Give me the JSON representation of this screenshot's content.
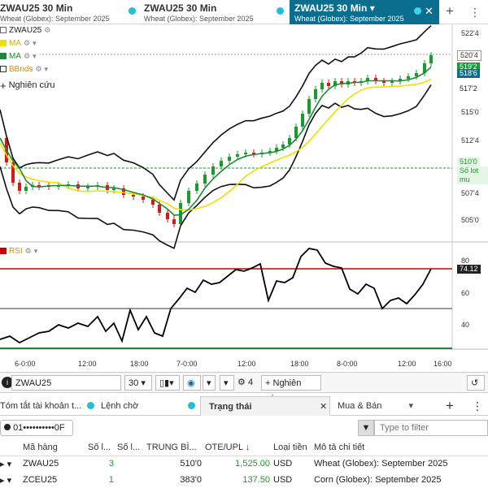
{
  "tabs": [
    {
      "symbol": "ZWAU25 30 Min",
      "subtitle": "Wheat (Globex): September 2025"
    },
    {
      "symbol": "ZWAU25 30 Min",
      "subtitle": "Wheat (Globex): September 2025"
    },
    {
      "symbol": "ZWAU25 30 Min",
      "subtitle": "Wheat (Globex): September 2025",
      "active": true
    }
  ],
  "legend": {
    "symbol": "ZWAU25",
    "ma1": "MA",
    "ma2": "MA",
    "bbands": "BBnds",
    "study": "Nghiên cứu",
    "rsi": "RSI"
  },
  "colors": {
    "accent": "#0b6e8f",
    "up": "#1a9a2a",
    "down": "#d11a1a",
    "ma_fast": "#1a8a3a",
    "ma_slow": "#f0e000",
    "rsi_line": "#000000",
    "rsi_ob": "#cc0000",
    "rsi_os": "#1a8a3a"
  },
  "chart_data": {
    "type": "candlestick",
    "y_ticks": [
      "522'4",
      "520'4",
      "517'2",
      "515'0",
      "512'4",
      "510'0",
      "507'4",
      "505'0"
    ],
    "x_ticks": [
      "6-0:00",
      "12:00",
      "18:00",
      "7-0:00",
      "12:00",
      "18:00",
      "8-0:00",
      "12:00",
      "16:00"
    ],
    "price_labels": [
      {
        "text": "519'2",
        "color": "#1a9a2a"
      },
      {
        "text": "518'6",
        "color": "#0b6e8f"
      },
      {
        "text": "517'2",
        "color": "#222"
      },
      {
        "text": "510'0",
        "color": "#1a9a2a"
      },
      {
        "text": "Số lot mu",
        "color": "#1a9a2a"
      }
    ],
    "last_price": "520'4",
    "rsi": {
      "ticks": [
        "80",
        "60",
        "40"
      ],
      "value": "74.12",
      "overbought": 70,
      "oversold": 30,
      "midline": 50
    }
  },
  "chart_toolbar": {
    "symbol": "ZWAU25",
    "interval": "30",
    "studies_count": "4",
    "studies_label": "Nghiên cứu"
  },
  "bottom_tabs": [
    "Tóm tắt tài khoản t...",
    "Lệnh chờ",
    "Trạng thái",
    "Mua & Bán"
  ],
  "account": "01••••••••••0F",
  "filter_placeholder": "Type to filter",
  "table": {
    "headers": [
      "Mã hàng",
      "Số l...",
      "Số l...",
      "TRUNG BÌ...",
      "OTE/UPL ↓",
      "Loại tiền",
      "Mô tả chi tiết"
    ],
    "rows": [
      {
        "symbol": "ZWAU25",
        "qty": "3",
        "qty2": "",
        "avg": "510'0",
        "ote": "1,525.00",
        "ccy": "USD",
        "desc": "Wheat (Globex): September 2025"
      },
      {
        "symbol": "ZCEU25",
        "qty": "1",
        "qty2": "",
        "avg": "383'0",
        "ote": "137.50",
        "ccy": "USD",
        "desc": "Corn (Globex): September 2025"
      }
    ]
  }
}
